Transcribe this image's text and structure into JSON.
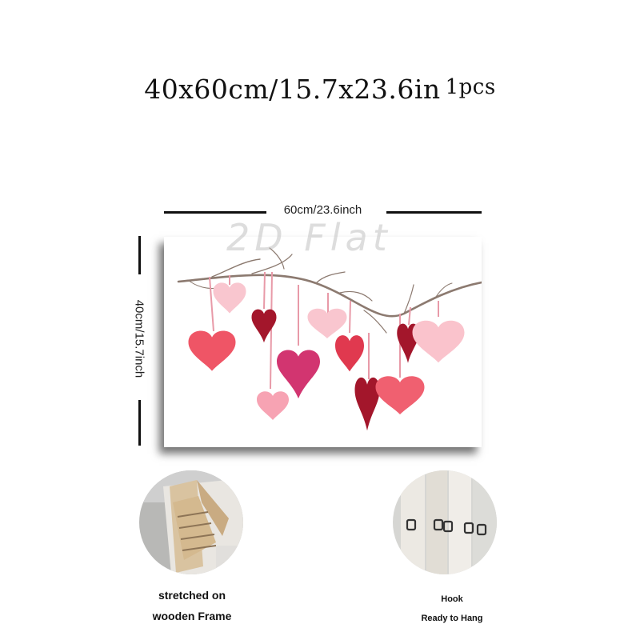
{
  "title": {
    "main": "40x60cm/15.7x23.6in",
    "qty": "1pcs"
  },
  "dimensions": {
    "width_label": "60cm/23.6inch",
    "height_label": "40cm/15.7inch"
  },
  "watermark": "2D Flat",
  "features": [
    {
      "line1": "stretched on",
      "line2": "wooden Frame"
    },
    {
      "line1": "Hook",
      "line2": "Ready to Hang"
    }
  ],
  "colors": {
    "dark_red": "#a3162b",
    "red": "#e0394f",
    "pink": "#f27c8d",
    "light_pink": "#f9c6cf",
    "magenta": "#d23570",
    "branch": "#8c7a70"
  }
}
